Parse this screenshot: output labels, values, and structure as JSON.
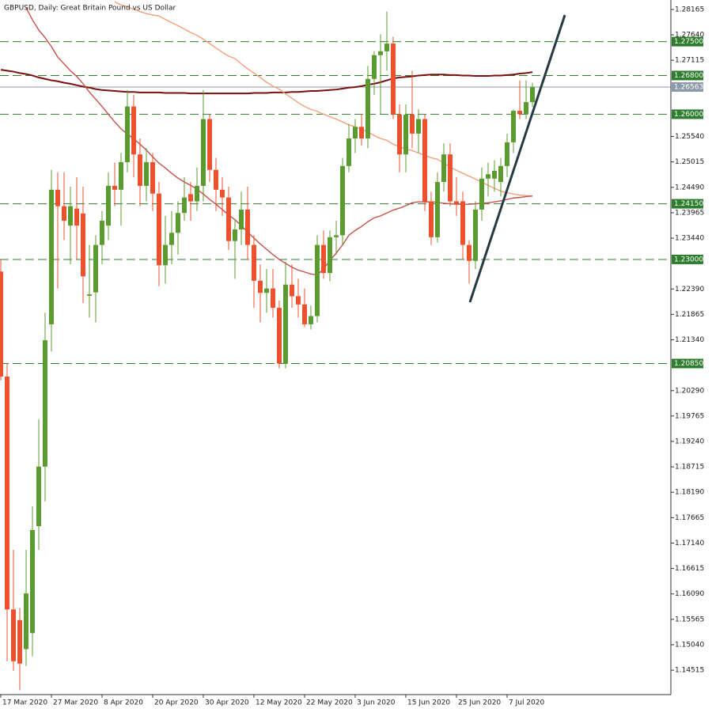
{
  "chart_data": {
    "type": "candlestick",
    "title": "GBPUSD, Daily:  Great Britain Pound vs US Dollar",
    "categories": [
      "17 Mar 2020",
      null,
      null,
      null,
      null,
      null,
      null,
      null,
      "27 Mar 2020",
      null,
      null,
      null,
      null,
      null,
      null,
      null,
      "8 Apr 2020",
      null,
      null,
      null,
      null,
      null,
      null,
      null,
      "20 Apr 2020",
      null,
      null,
      null,
      null,
      null,
      null,
      null,
      "30 Apr 2020",
      null,
      null,
      null,
      null,
      null,
      null,
      null,
      "12 May 2020",
      null,
      null,
      null,
      null,
      null,
      null,
      null,
      "22 May 2020",
      null,
      null,
      null,
      null,
      null,
      null,
      null,
      "3 Jun 2020",
      null,
      null,
      null,
      null,
      null,
      null,
      null,
      "15 Jun 2020",
      null,
      null,
      null,
      null,
      null,
      null,
      null,
      "25 Jun 2020",
      null,
      null,
      null,
      null,
      null,
      null,
      null,
      "7 Jul 2020",
      null,
      null,
      null,
      null
    ],
    "open": [
      1.2275,
      1.2058,
      1.1577,
      1.1555,
      1.1495,
      1.1528,
      1.1749,
      1.1872,
      1.2166,
      1.2444,
      1.241,
      1.237,
      1.2405,
      1.2395,
      1.2225,
      1.2232,
      1.233,
      1.237,
      1.2452,
      1.2444,
      1.2501,
      1.2616,
      1.2517,
      1.2452,
      1.2501,
      1.2436,
      1.2288,
      1.233,
      1.2355,
      1.2396,
      1.2435,
      1.242,
      1.2452,
      1.259,
      1.2485,
      1.2444,
      1.2428,
      1.2338,
      1.2362,
      1.2403,
      1.233,
      1.2256,
      1.2231,
      1.224,
      1.22,
      1.2085,
      1.2248,
      1.2224,
      1.2207,
      1.2166,
      1.2183,
      1.233,
      1.2272,
      1.2346,
      1.235,
      1.2493,
      1.255,
      1.2574,
      1.255,
      1.2673,
      1.2722,
      1.273,
      1.2746,
      1.2599,
      1.2517,
      1.2599,
      1.256,
      1.259,
      1.242,
      1.2346,
      1.246,
      1.2517,
      1.242,
      1.242,
      1.233,
      1.2297,
      1.2403,
      1.2467,
      1.2467,
      1.246,
      1.2493,
      1.2542,
      1.2607,
      1.26,
      1.2625
    ],
    "high": [
      1.23,
      1.2085,
      1.17,
      1.158,
      1.17,
      1.179,
      1.197,
      1.219,
      1.2485,
      1.248,
      1.248,
      1.245,
      1.247,
      1.245,
      1.233,
      1.235,
      1.24,
      1.248,
      1.25,
      1.252,
      1.265,
      1.264,
      1.255,
      1.253,
      1.252,
      1.246,
      1.239,
      1.24,
      1.242,
      1.247,
      1.246,
      1.249,
      1.265,
      1.26,
      1.251,
      1.247,
      1.245,
      1.238,
      1.244,
      1.245,
      1.235,
      1.229,
      1.228,
      1.228,
      1.2215,
      1.2295,
      1.229,
      1.226,
      1.224,
      1.2205,
      1.235,
      1.236,
      1.236,
      1.238,
      1.251,
      1.258,
      1.259,
      1.26,
      1.27,
      1.273,
      1.2765,
      1.2812,
      1.276,
      1.262,
      1.262,
      1.269,
      1.261,
      1.26,
      1.244,
      1.248,
      1.254,
      1.254,
      1.247,
      1.244,
      1.234,
      1.242,
      1.249,
      1.25,
      1.2505,
      1.251,
      1.256,
      1.261,
      1.267,
      1.267,
      1.2665
    ],
    "low": [
      1.205,
      1.147,
      1.145,
      1.141,
      1.146,
      1.148,
      1.17,
      1.18,
      1.211,
      1.224,
      1.234,
      1.229,
      1.23,
      1.221,
      1.218,
      1.217,
      1.229,
      1.234,
      1.241,
      1.237,
      1.248,
      1.247,
      1.241,
      1.242,
      1.24,
      1.2245,
      1.225,
      1.229,
      1.231,
      1.238,
      1.238,
      1.24,
      1.242,
      1.246,
      1.24,
      1.239,
      1.232,
      1.226,
      1.233,
      1.23,
      1.22,
      1.217,
      1.219,
      1.218,
      1.2075,
      1.2075,
      1.22,
      1.218,
      1.216,
      1.2155,
      1.217,
      1.226,
      1.2255,
      1.231,
      1.233,
      1.248,
      1.252,
      1.2535,
      1.253,
      1.264,
      1.26,
      1.269,
      1.259,
      1.248,
      1.248,
      1.253,
      1.252,
      1.24,
      1.233,
      1.2335,
      1.244,
      1.241,
      1.239,
      1.23,
      1.225,
      1.228,
      1.238,
      1.243,
      1.244,
      1.243,
      1.247,
      1.252,
      1.259,
      1.259,
      1.2615
    ],
    "close": [
      1.2058,
      1.1577,
      1.147,
      1.1465,
      1.161,
      1.1741,
      1.1872,
      1.2133,
      1.2444,
      1.241,
      1.238,
      1.241,
      1.237,
      1.2265,
      1.2228,
      1.233,
      1.238,
      1.2452,
      1.2444,
      1.2501,
      1.2616,
      1.2517,
      1.2452,
      1.2501,
      1.2436,
      1.2288,
      1.233,
      1.2355,
      1.2396,
      1.2428,
      1.242,
      1.2452,
      1.259,
      1.2485,
      1.2444,
      1.2428,
      1.2338,
      1.2362,
      1.2403,
      1.233,
      1.2256,
      1.2231,
      1.224,
      1.22,
      1.2085,
      1.2248,
      1.2224,
      1.2207,
      1.2166,
      1.2183,
      1.233,
      1.2272,
      1.2346,
      1.235,
      1.2493,
      1.255,
      1.2574,
      1.255,
      1.2673,
      1.2722,
      1.273,
      1.2746,
      1.2599,
      1.2517,
      1.2599,
      1.256,
      1.259,
      1.242,
      1.2346,
      1.246,
      1.2517,
      1.242,
      1.2415,
      1.233,
      1.2297,
      1.2403,
      1.2467,
      1.2476,
      1.2483,
      1.2493,
      1.2542,
      1.2607,
      1.26,
      1.2625,
      1.2656
    ],
    "up_color": "#5b9a2f",
    "down_color": "#e9522c",
    "moving_averages": [
      {
        "color": "#7a0f0f",
        "values": [
          1.2692,
          1.269,
          1.2688,
          1.2685,
          1.2683,
          1.268,
          1.2676,
          1.2673,
          1.267,
          1.2668,
          1.2665,
          1.2663,
          1.266,
          1.2657,
          1.2655,
          1.2652,
          1.265,
          1.2649,
          1.2648,
          1.2647,
          1.2646,
          1.2646,
          1.2645,
          1.2645,
          1.2645,
          1.2645,
          1.2644,
          1.2644,
          1.2644,
          1.2644,
          1.2643,
          1.2643,
          1.2643,
          1.2643,
          1.2643,
          1.2643,
          1.2643,
          1.2643,
          1.2643,
          1.2643,
          1.2644,
          1.2644,
          1.2644,
          1.2645,
          1.2645,
          1.2645,
          1.2646,
          1.2646,
          1.2647,
          1.2648,
          1.2648,
          1.2649,
          1.265,
          1.2651,
          1.2653,
          1.2655,
          1.2656,
          1.2658,
          1.2661,
          1.2663,
          1.2666,
          1.267,
          1.2674,
          1.2676,
          1.2677,
          1.2678,
          1.268,
          1.2681,
          1.2682,
          1.2682,
          1.2682,
          1.2681,
          1.2681,
          1.268,
          1.268,
          1.2679,
          1.2679,
          1.2679,
          1.268,
          1.268,
          1.2681,
          1.2682,
          1.2684,
          1.2685,
          1.2687
        ]
      },
      {
        "color": "#f4a07a",
        "values": [
          null,
          null,
          null,
          null,
          null,
          null,
          null,
          null,
          null,
          null,
          null,
          null,
          null,
          null,
          null,
          null,
          null,
          null,
          1.2832,
          1.2826,
          1.2822,
          1.2817,
          1.2812,
          1.2808,
          1.2805,
          1.2803,
          1.2796,
          1.2789,
          1.2783,
          1.2776,
          1.2769,
          1.2763,
          1.2755,
          1.2746,
          1.2737,
          1.2728,
          1.272,
          1.2715,
          1.2704,
          1.2694,
          1.2685,
          1.2676,
          1.2666,
          1.2658,
          1.2652,
          1.2642,
          1.2633,
          1.2624,
          1.2616,
          1.261,
          1.2606,
          1.26,
          1.2595,
          1.259,
          1.2584,
          1.2578,
          1.2574,
          1.2569,
          1.2563,
          1.2556,
          1.255,
          1.2546,
          1.2538,
          1.2533,
          1.2528,
          1.2525,
          1.252,
          1.2515,
          1.251,
          1.2507,
          1.2499,
          1.2491,
          1.2484,
          1.2478,
          1.2472,
          1.2466,
          1.246,
          1.2453,
          1.2447,
          1.2441,
          1.2438,
          1.2435,
          1.2433,
          1.2432,
          1.2431
        ]
      },
      {
        "color": "#c8504a",
        "values": [
          null,
          null,
          null,
          null,
          1.282,
          1.2795,
          1.2774,
          1.2758,
          1.274,
          1.2718,
          1.2704,
          1.269,
          1.2678,
          1.2663,
          1.2646,
          1.2631,
          1.2616,
          1.26,
          1.2584,
          1.257,
          1.2559,
          1.2549,
          1.2538,
          1.2526,
          1.2512,
          1.2499,
          1.2489,
          1.2478,
          1.2468,
          1.246,
          1.2453,
          1.2445,
          1.2435,
          1.2424,
          1.2414,
          1.2403,
          1.2392,
          1.2382,
          1.237,
          1.2357,
          1.2344,
          1.2332,
          1.2321,
          1.231,
          1.23,
          1.2292,
          1.2284,
          1.2278,
          1.2274,
          1.227,
          1.2268,
          1.228,
          1.2298,
          1.2313,
          1.233,
          1.235,
          1.236,
          1.2368,
          1.2378,
          1.2386,
          1.239,
          1.2396,
          1.2402,
          1.2406,
          1.2411,
          1.2417,
          1.2419,
          1.2419,
          1.2419,
          1.2418,
          1.2416,
          1.2415,
          1.2414,
          1.2414,
          1.2414,
          1.2415,
          1.2416,
          1.2417,
          1.2419,
          1.2421,
          1.2424,
          1.2427,
          1.2428,
          1.243,
          1.2431
        ]
      }
    ],
    "ylim": [
      1.1401,
      1.2836
    ],
    "yticks": [
      1.28165,
      {
        "value": 1.2764,
        "label": "1.27640"
      },
      1.27115,
      {
        "value": 1.2554,
        "label": "1.25540"
      },
      1.25015,
      {
        "value": 1.2449,
        "label": "1.24490"
      },
      1.23965,
      {
        "value": 1.2344,
        "label": "1.23440"
      },
      {
        "value": 1.2239,
        "label": "1.22390"
      },
      1.21865,
      {
        "value": 1.2134,
        "label": "1.21340"
      },
      {
        "value": 1.2029,
        "label": "1.20290"
      },
      1.19765,
      {
        "value": 1.1924,
        "label": "1.19240"
      },
      1.18715,
      {
        "value": 1.1819,
        "label": "1.18190"
      },
      1.17665,
      {
        "value": 1.1714,
        "label": "1.17140"
      },
      1.16615,
      {
        "value": 1.1609,
        "label": "1.16090"
      },
      1.15565,
      {
        "value": 1.1504,
        "label": "1.15040"
      },
      1.14515
    ],
    "levels": [
      {
        "value": 1.275,
        "label": "1.27500"
      },
      {
        "value": 1.268,
        "label": "1.26800"
      },
      {
        "value": 1.26,
        "label": "1.26000"
      },
      {
        "value": 1.2415,
        "label": "1.24150"
      },
      {
        "value": 1.23,
        "label": "1.23000"
      },
      {
        "value": 1.2085,
        "label": "1.20850"
      }
    ],
    "level_color": "#2e7d2e",
    "last_price": 1.26563,
    "last_price_color": "#8d99a6"
  }
}
